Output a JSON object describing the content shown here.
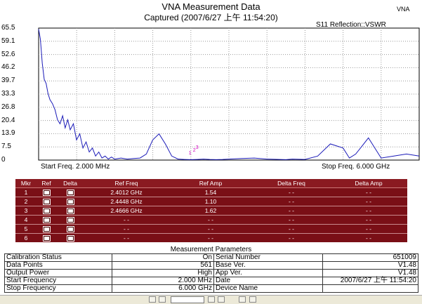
{
  "header": {
    "title": "VNA Measurement Data",
    "subtitle": "Captured  (2007/6/27 上午 11:54:20)",
    "tag": "VNA",
    "mode": "S11 Reflection::VSWR"
  },
  "chart_data": {
    "type": "line",
    "ylim": [
      0,
      65.5
    ],
    "yticks": [
      "65.5",
      "59.1",
      "52.6",
      "46.2",
      "39.7",
      "33.3",
      "26.8",
      "20.4",
      "13.9",
      "7.5",
      "0"
    ],
    "start_freq_label": "Start Freq. 2.000 MHz",
    "stop_freq_label": "Stop Freq. 6.000 GHz",
    "x_range_ghz": [
      0.002,
      6.0
    ],
    "grid": true,
    "marker_labels": [
      "1",
      "2",
      "3"
    ],
    "series": [
      {
        "x": [
          0.002,
          0.03,
          0.06,
          0.09,
          0.12,
          0.15,
          0.18,
          0.22,
          0.26,
          0.3,
          0.34,
          0.38,
          0.42,
          0.46,
          0.5,
          0.55,
          0.6,
          0.65,
          0.7,
          0.75,
          0.8,
          0.85,
          0.9,
          0.95,
          1.0,
          1.05,
          1.1,
          1.15,
          1.2,
          1.3,
          1.4,
          1.5,
          1.6,
          1.7,
          1.8,
          1.9,
          2.0,
          2.1,
          2.2,
          2.3,
          2.4,
          2.5,
          2.6,
          2.7,
          2.8,
          2.9,
          3.0,
          3.2,
          3.4,
          3.6,
          3.8,
          3.9,
          4.0,
          4.1,
          4.2,
          4.4,
          4.6,
          4.8,
          4.9,
          5.0,
          5.1,
          5.2,
          5.4,
          5.6,
          5.8,
          6.0
        ],
        "values": [
          65,
          60,
          48,
          40,
          38,
          33,
          30,
          28,
          25,
          20,
          18,
          22,
          16,
          20,
          15,
          18,
          10,
          13,
          6,
          9,
          4,
          6,
          2,
          4,
          1,
          2,
          0.5,
          1.5,
          0.5,
          1,
          0.5,
          0.8,
          1,
          3,
          10,
          13,
          8,
          2,
          0.5,
          0.3,
          0.2,
          0.3,
          0.5,
          0.3,
          0.2,
          0.3,
          0.5,
          0.8,
          1,
          0.5,
          0.3,
          0.2,
          0.5,
          0.4,
          0.3,
          2,
          8,
          6,
          1,
          3,
          7,
          11,
          1,
          2,
          3,
          2
        ]
      }
    ]
  },
  "marker_table": {
    "headers": [
      "Mkr",
      "Ref",
      "Delta",
      "Ref Freq",
      "Ref Amp",
      "Delta Freq",
      "Delta Amp"
    ],
    "rows": [
      {
        "mkr": "1",
        "ref_freq": "2.4012 GHz",
        "ref_amp": "1.54",
        "delta_freq": "- -",
        "delta_amp": "- -"
      },
      {
        "mkr": "2",
        "ref_freq": "2.4448 GHz",
        "ref_amp": "1.10",
        "delta_freq": "- -",
        "delta_amp": "- -"
      },
      {
        "mkr": "3",
        "ref_freq": "2.4666 GHz",
        "ref_amp": "1.62",
        "delta_freq": "- -",
        "delta_amp": "- -"
      },
      {
        "mkr": "4",
        "ref_freq": "- -",
        "ref_amp": "- -",
        "delta_freq": "- -",
        "delta_amp": "- -"
      },
      {
        "mkr": "5",
        "ref_freq": "- -",
        "ref_amp": "- -",
        "delta_freq": "- -",
        "delta_amp": "- -"
      },
      {
        "mkr": "6",
        "ref_freq": "- -",
        "ref_amp": "- -",
        "delta_freq": "- -",
        "delta_amp": "- -"
      }
    ]
  },
  "params": {
    "title": "Measurement Parameters",
    "rows": [
      [
        "Calibration Status",
        "On",
        "Serial Number",
        "651009"
      ],
      [
        "Data Points",
        "561",
        "Base Ver.",
        "V1.48"
      ],
      [
        "Output Power",
        "High",
        "App Ver.",
        "V1.48"
      ],
      [
        "Start Frequency",
        "2.000 MHz",
        "Date",
        "2007/6/27 上午 11:54:20"
      ],
      [
        "Stop Frequency",
        "6.000 GHz",
        "Device Name",
        ""
      ]
    ]
  },
  "colors": {
    "trace": "#1a1ab8",
    "marker": "#d000c0",
    "table_bg": "#7a0f16"
  }
}
